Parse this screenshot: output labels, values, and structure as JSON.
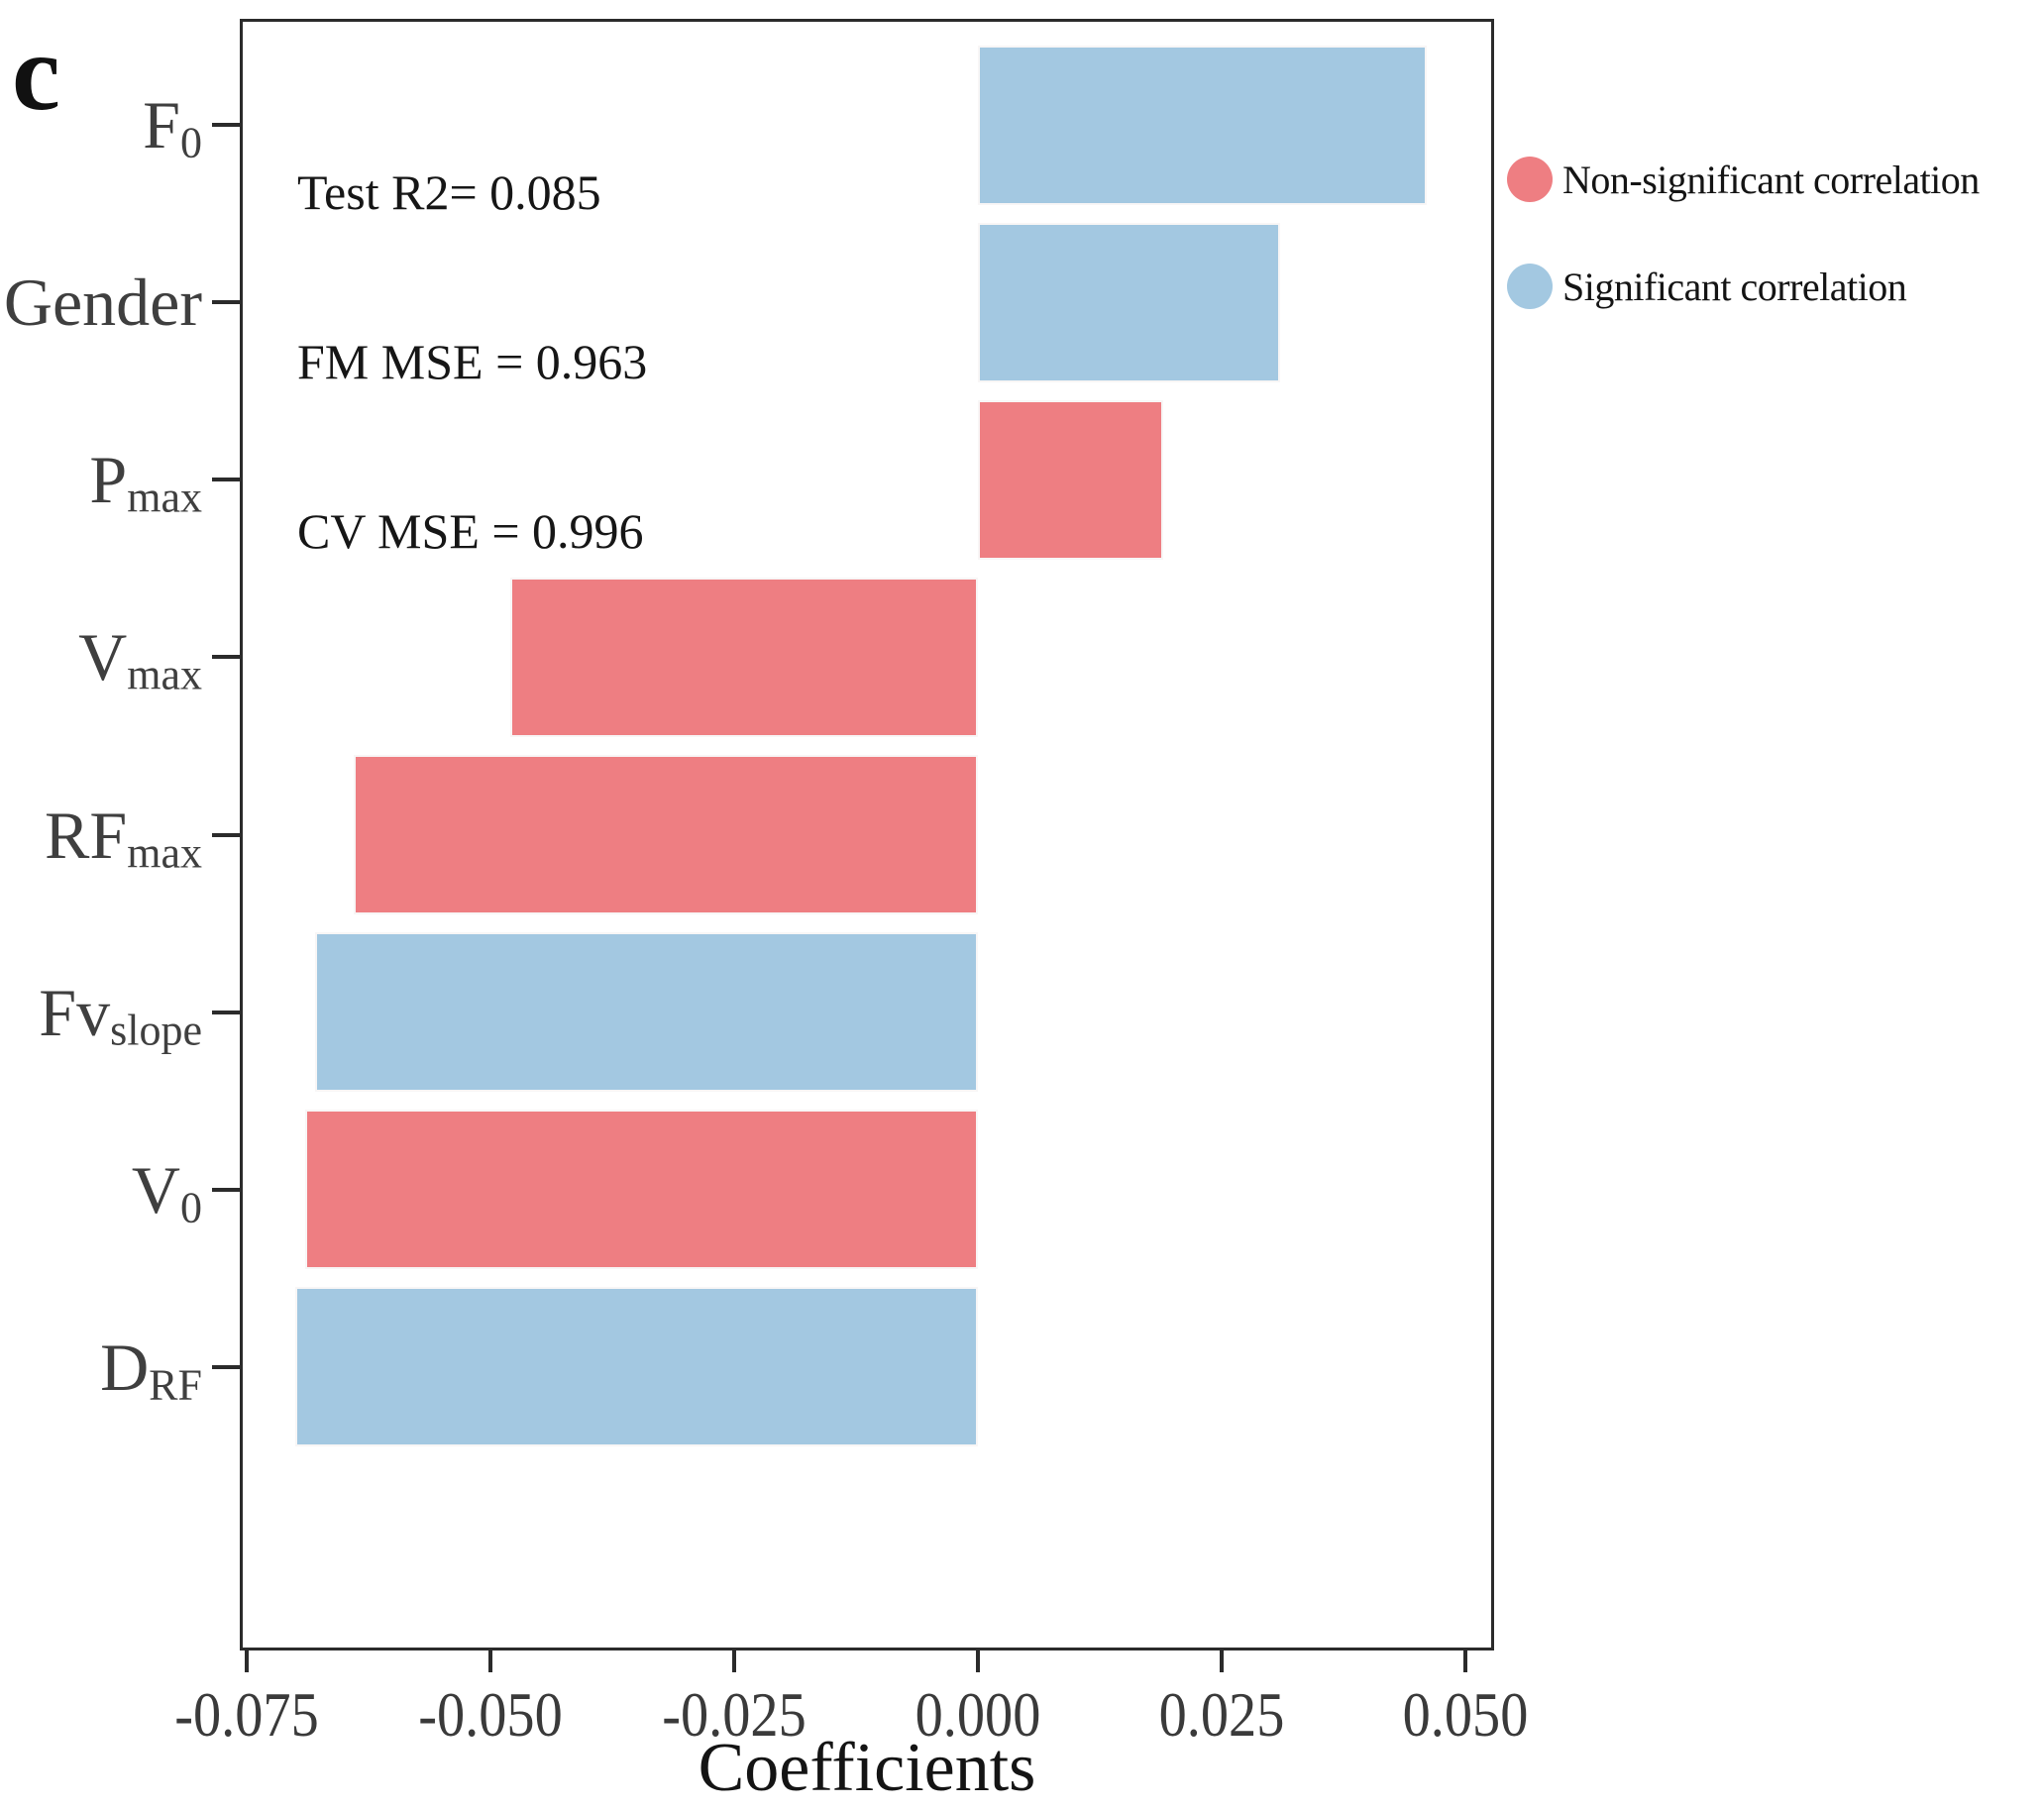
{
  "panel_label": "c",
  "annotation": {
    "lines": [
      "Test R2= 0.085",
      "FM MSE = 0.963",
      "CV MSE = 0.996"
    ]
  },
  "legend": {
    "items": [
      {
        "label": "Non-significant correlation",
        "color": "#EE7E82"
      },
      {
        "label": "Significant correlation",
        "color": "#A3C8E1"
      }
    ]
  },
  "axis": {
    "xlabel": "Coefficients",
    "xticks": [
      {
        "value": -0.075,
        "label": "-0.075"
      },
      {
        "value": -0.05,
        "label": "-0.050"
      },
      {
        "value": -0.025,
        "label": "-0.025"
      },
      {
        "value": 0.0,
        "label": "0.000"
      },
      {
        "value": 0.025,
        "label": "0.025"
      },
      {
        "value": 0.05,
        "label": "0.050"
      }
    ]
  },
  "chart_data": {
    "type": "bar",
    "orientation": "horizontal",
    "title": "",
    "xlabel": "Coefficients",
    "ylabel": "",
    "xlim": [
      -0.0757,
      0.0531
    ],
    "grid": false,
    "legend_position": "right",
    "categories": [
      "F0",
      "Gender",
      "Pmax",
      "Vmax",
      "RFmax",
      "Fvslope",
      "V0",
      "DRF"
    ],
    "values": [
      0.046,
      0.031,
      0.019,
      -0.048,
      -0.064,
      -0.068,
      -0.069,
      -0.07
    ],
    "bars": [
      {
        "id": "F0",
        "label_main": "F",
        "label_sub": "0",
        "value": 0.046,
        "significant": true
      },
      {
        "id": "Gender",
        "label_main": "Gender",
        "label_sub": "",
        "value": 0.031,
        "significant": true
      },
      {
        "id": "Pmax",
        "label_main": "P",
        "label_sub": "max",
        "value": 0.019,
        "significant": false
      },
      {
        "id": "Vmax",
        "label_main": "V",
        "label_sub": "max",
        "value": -0.048,
        "significant": false
      },
      {
        "id": "RFmax",
        "label_main": "RF",
        "label_sub": "max",
        "value": -0.064,
        "significant": false
      },
      {
        "id": "Fvslope",
        "label_main": "Fv",
        "label_sub": "slope",
        "value": -0.068,
        "significant": true
      },
      {
        "id": "V0",
        "label_main": "V",
        "label_sub": "0",
        "value": -0.069,
        "significant": false
      },
      {
        "id": "DRF",
        "label_main": "D",
        "label_sub": "RF",
        "value": -0.07,
        "significant": true
      }
    ],
    "colors": {
      "significant": "#A3C8E1",
      "non_significant": "#EE7E82"
    },
    "stats": {
      "test_r2": 0.085,
      "fm_mse": 0.963,
      "cv_mse": 0.996
    }
  }
}
